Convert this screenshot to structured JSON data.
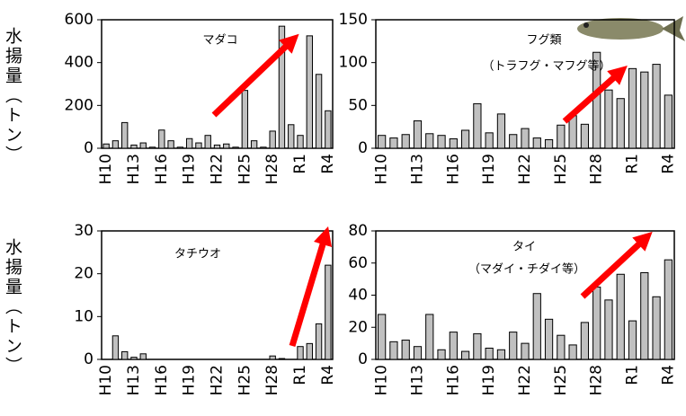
{
  "chart_data": [
    {
      "type": "bar",
      "title": "マダコ",
      "ylabel": "水揚量（トン）",
      "categories": [
        "H10",
        null,
        null,
        "H13",
        null,
        null,
        "H16",
        null,
        null,
        "H19",
        null,
        null,
        "H22",
        null,
        null,
        "H25",
        null,
        null,
        "H28",
        null,
        null,
        "R1",
        null,
        null,
        "R4"
      ],
      "values": [
        20,
        35,
        120,
        15,
        25,
        5,
        85,
        35,
        5,
        45,
        25,
        60,
        15,
        20,
        5,
        270,
        35,
        5,
        80,
        570,
        110,
        60,
        525,
        345,
        175
      ],
      "color": "#c0c0c0",
      "ylim": [
        0,
        600
      ],
      "yticks": [
        0,
        200,
        400,
        600
      ]
    },
    {
      "type": "bar",
      "title": "フグ類",
      "subtitle": "（トラフグ・マフグ等）",
      "categories": [
        "H10",
        null,
        null,
        "H13",
        null,
        null,
        "H16",
        null,
        null,
        "H19",
        null,
        null,
        "H22",
        null,
        null,
        "H25",
        null,
        null,
        "H28",
        null,
        null,
        "R1",
        null,
        null,
        "R4"
      ],
      "values": [
        15,
        12,
        16,
        32,
        17,
        15,
        11,
        21,
        52,
        18,
        40,
        16,
        23,
        12,
        10,
        27,
        38,
        28,
        112,
        68,
        58,
        93,
        89,
        98,
        62
      ],
      "color": "#c0c0c0",
      "ylim": [
        0,
        150
      ],
      "yticks": [
        0,
        50,
        100,
        150
      ]
    },
    {
      "type": "bar",
      "title": "タチウオ",
      "ylabel": "水揚量（トン）",
      "categories": [
        "H10",
        null,
        null,
        "H13",
        null,
        null,
        "H16",
        null,
        null,
        "H19",
        null,
        null,
        "H22",
        null,
        null,
        "H25",
        null,
        null,
        "H28",
        null,
        null,
        "R1",
        null,
        null,
        "R4"
      ],
      "values": [
        0,
        5.5,
        1.8,
        0.5,
        1.3,
        0,
        0,
        0,
        0,
        0,
        0,
        0,
        0,
        0,
        0,
        0,
        0,
        0,
        0.8,
        0.2,
        0,
        3,
        3.7,
        8.3,
        22
      ],
      "color": "#c0c0c0",
      "ylim": [
        0,
        30
      ],
      "yticks": [
        0,
        10,
        20,
        30
      ]
    },
    {
      "type": "bar",
      "title": "タイ",
      "subtitle": "（マダイ・チダイ等）",
      "categories": [
        "H10",
        null,
        null,
        "H13",
        null,
        null,
        "H16",
        null,
        null,
        "H19",
        null,
        null,
        "H22",
        null,
        null,
        "H25",
        null,
        null,
        "H28",
        null,
        null,
        "R1",
        null,
        null,
        "R4"
      ],
      "values": [
        28,
        11,
        12,
        8,
        28,
        6,
        17,
        5,
        16,
        7,
        6,
        17,
        10,
        41,
        25,
        15,
        9,
        23,
        45,
        37,
        53,
        24,
        54,
        39,
        62
      ],
      "color": "#c0c0c0",
      "ylim": [
        0,
        80
      ],
      "yticks": [
        0,
        20,
        40,
        60,
        80
      ]
    }
  ]
}
